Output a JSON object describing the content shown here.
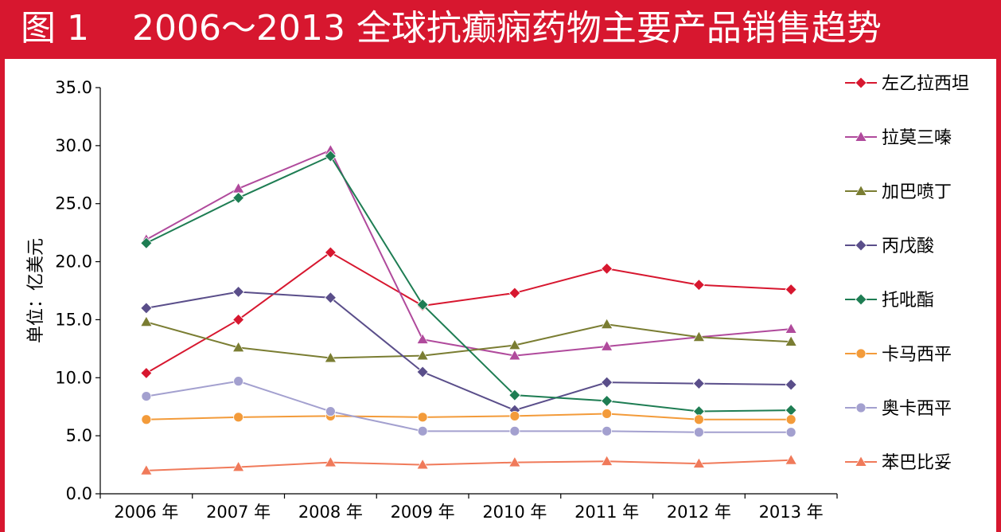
{
  "figure": {
    "number": "图 1",
    "title": "2006～2013 全球抗癫痫药物主要产品销售趋势"
  },
  "colors": {
    "frame": "#d7172f",
    "axis": "#000000"
  },
  "chart_data": {
    "type": "line",
    "title": "2006～2013 全球抗癫痫药物主要产品销售趋势",
    "xlabel": "",
    "ylabel": "单位：亿美元",
    "categories": [
      "2006 年",
      "2007 年",
      "2008 年",
      "2009 年",
      "2010 年",
      "2011 年",
      "2012 年",
      "2013 年"
    ],
    "ylim": [
      0,
      35
    ],
    "yticks": [
      "0.0",
      "5.0",
      "10.0",
      "15.0",
      "20.0",
      "25.0",
      "30.0",
      "35.0"
    ],
    "grid": false,
    "legend": "right",
    "series": [
      {
        "name": "左乙拉西坦",
        "color": "#d7172f",
        "marker": "diamond",
        "values": [
          10.4,
          15.0,
          20.8,
          16.2,
          17.3,
          19.4,
          18.0,
          17.6
        ]
      },
      {
        "name": "拉莫三嗪",
        "color": "#b04a9c",
        "marker": "triangle",
        "values": [
          21.9,
          26.3,
          29.6,
          13.3,
          11.9,
          12.7,
          13.5,
          14.2
        ]
      },
      {
        "name": "加巴喷丁",
        "color": "#7a7d32",
        "marker": "triangle",
        "values": [
          14.8,
          12.6,
          11.7,
          11.9,
          12.8,
          14.6,
          13.5,
          13.1
        ]
      },
      {
        "name": "丙戊酸",
        "color": "#5a4e8a",
        "marker": "diamond",
        "values": [
          16.0,
          17.4,
          16.9,
          10.5,
          7.2,
          9.6,
          9.5,
          9.4
        ]
      },
      {
        "name": "托吡酯",
        "color": "#1e7d53",
        "marker": "diamond",
        "values": [
          21.6,
          25.5,
          29.1,
          16.3,
          8.5,
          8.0,
          7.1,
          7.2
        ]
      },
      {
        "name": "卡马西平",
        "color": "#f39b3a",
        "marker": "circle",
        "values": [
          6.4,
          6.6,
          6.7,
          6.6,
          6.7,
          6.9,
          6.4,
          6.4
        ]
      },
      {
        "name": "奥卡西平",
        "color": "#a3a0cf",
        "marker": "circle",
        "values": [
          8.4,
          9.7,
          7.1,
          5.4,
          5.4,
          5.4,
          5.3,
          5.3
        ]
      },
      {
        "name": "苯巴比妥",
        "color": "#f07a5a",
        "marker": "triangle",
        "values": [
          2.0,
          2.3,
          2.7,
          2.5,
          2.7,
          2.8,
          2.6,
          2.9
        ]
      }
    ]
  }
}
